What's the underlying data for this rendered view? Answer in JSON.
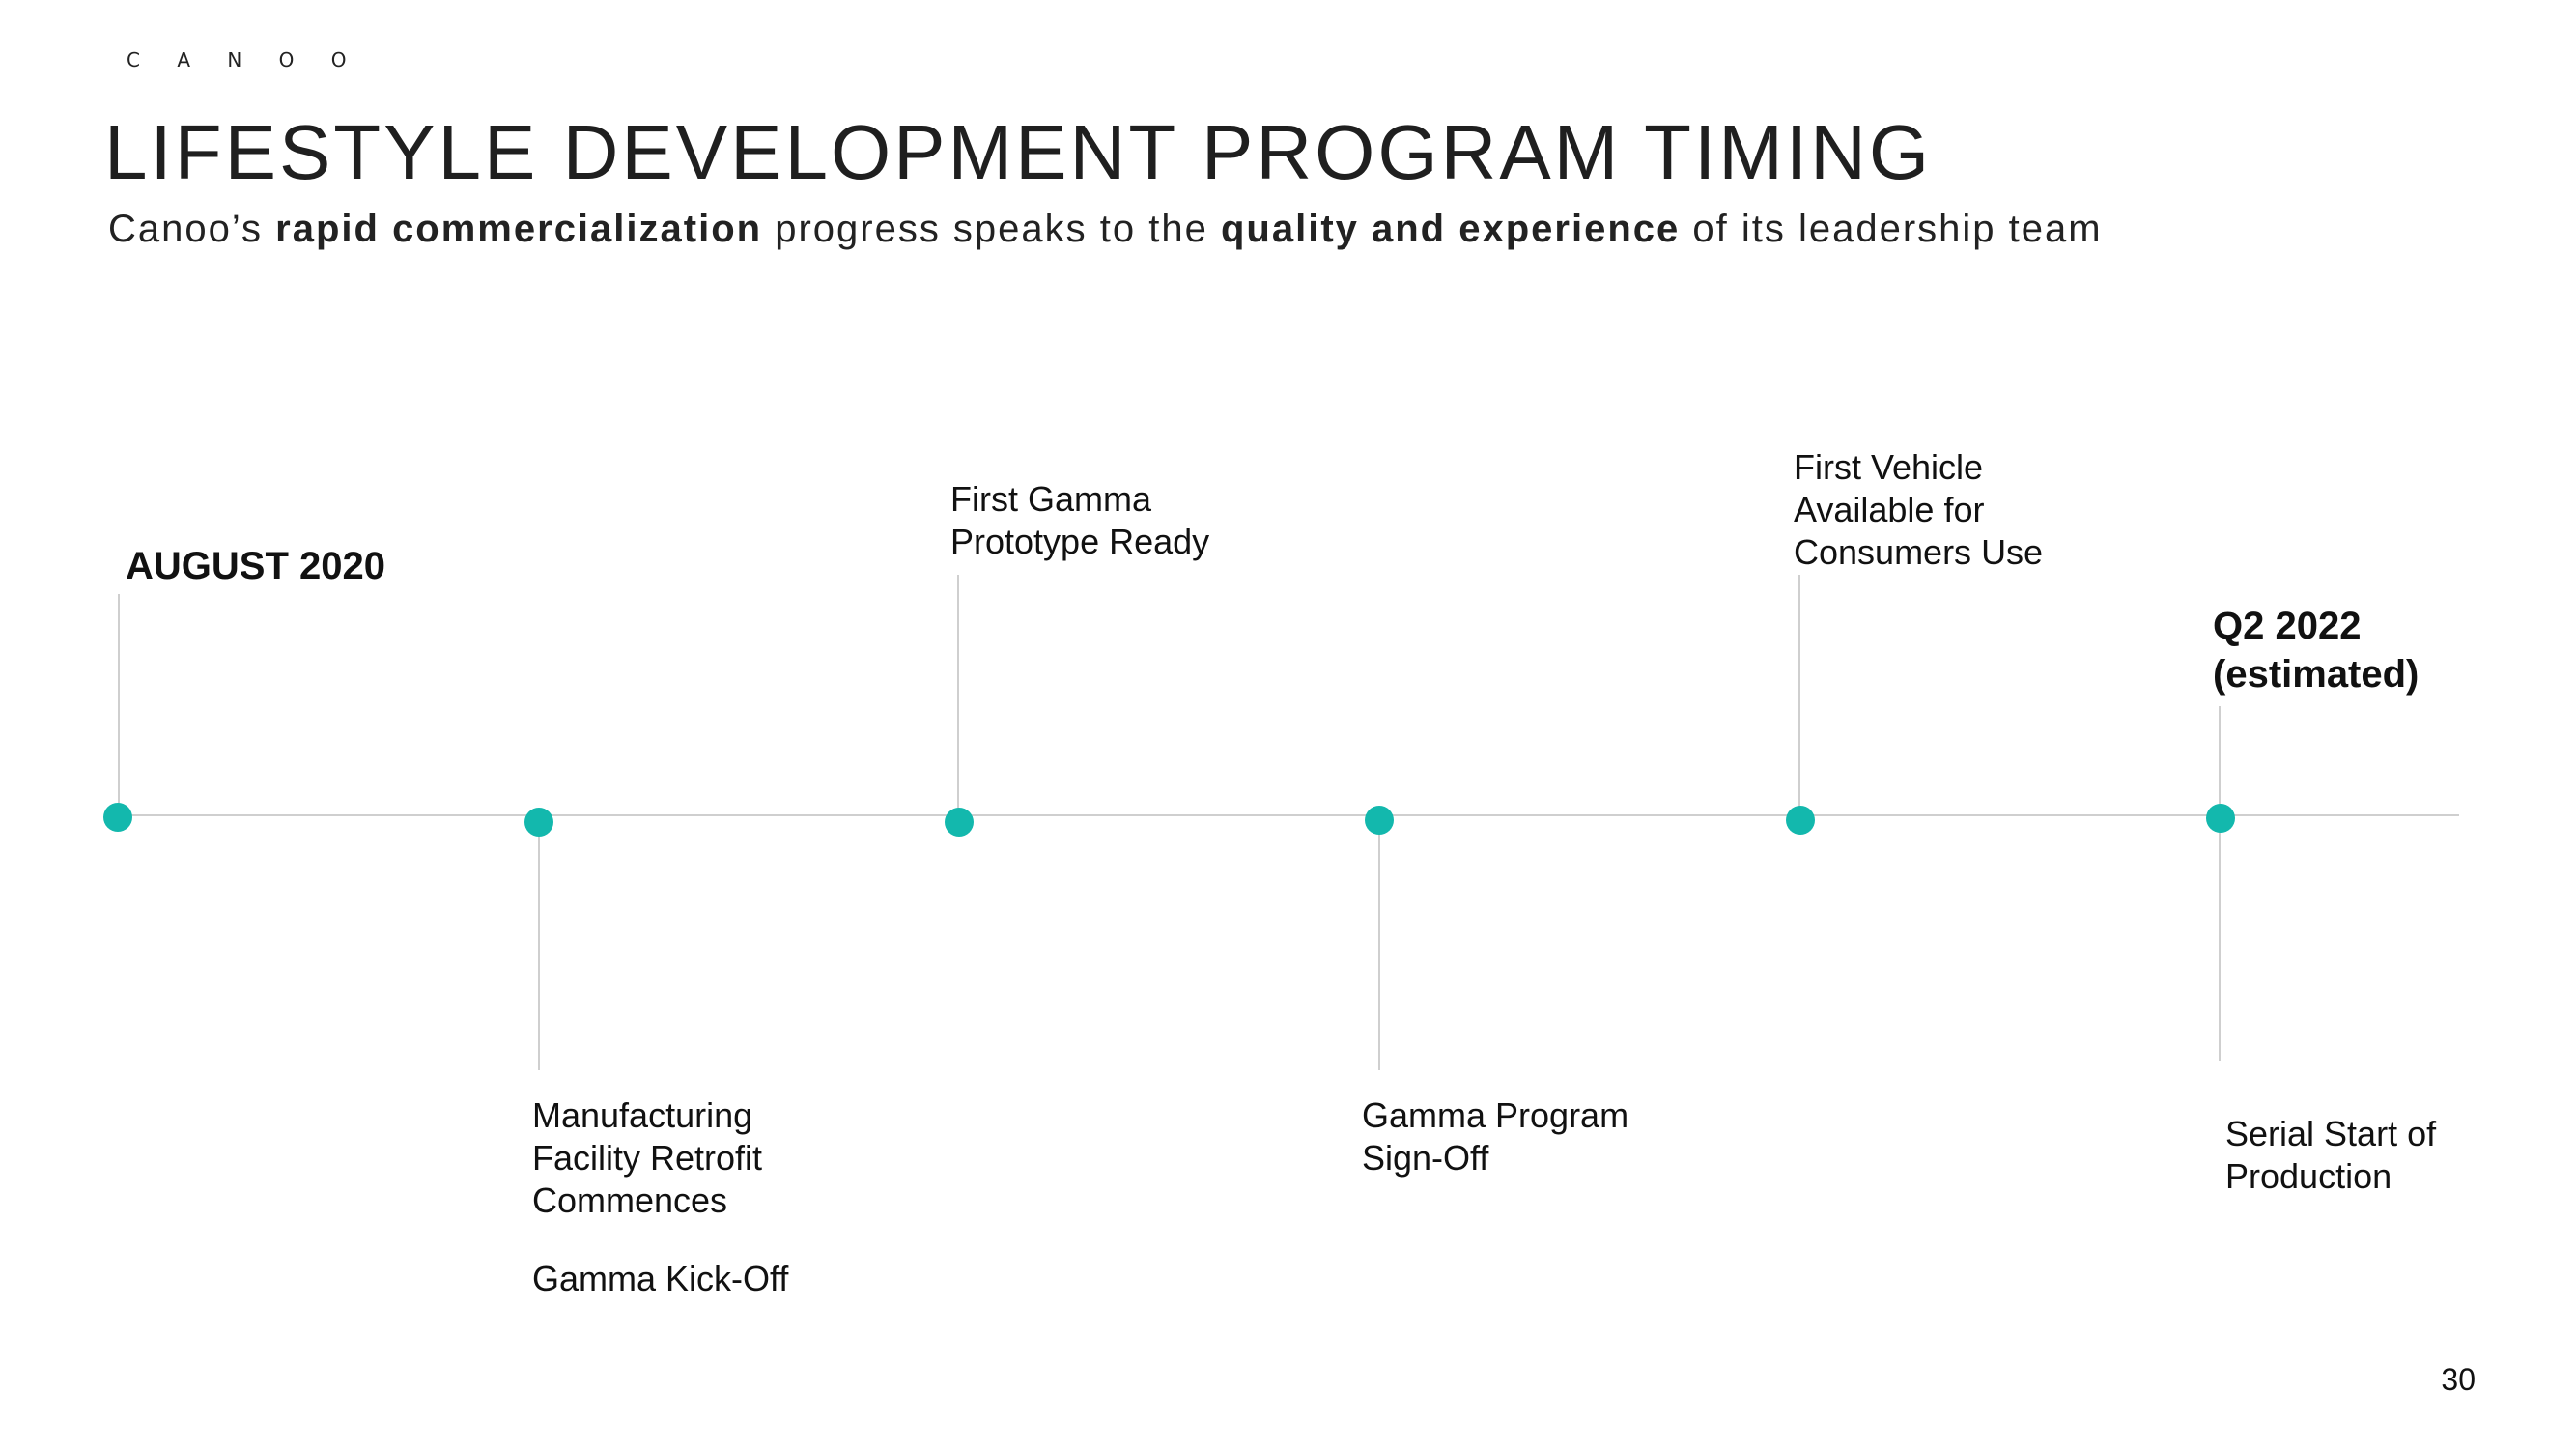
{
  "slide": {
    "brand": "C A N O O",
    "title": "LIFESTYLE DEVELOPMENT PROGRAM TIMING",
    "subtitle": {
      "t1": "Canoo’s ",
      "b1": "rapid commercialization",
      "t2": " progress speaks to the ",
      "b2": "quality and experience",
      "t3": " of its leadership team"
    },
    "page_number": "30"
  },
  "timeline": {
    "accent_color": "#13b8ad",
    "start_label": "AUGUST 2020",
    "end_label": "Q2 2022\n(estimated)",
    "m_retrofit": "Manufacturing\nFacility Retrofit\nCommences",
    "m_kickoff": "Gamma Kick-Off",
    "m_prototype": "First Gamma\nPrototype Ready",
    "m_signoff": "Gamma Program\nSign-Off",
    "m_consumer": "First Vehicle\nAvailable for\nConsumers Use",
    "m_production": "Serial Start of\nProduction"
  }
}
